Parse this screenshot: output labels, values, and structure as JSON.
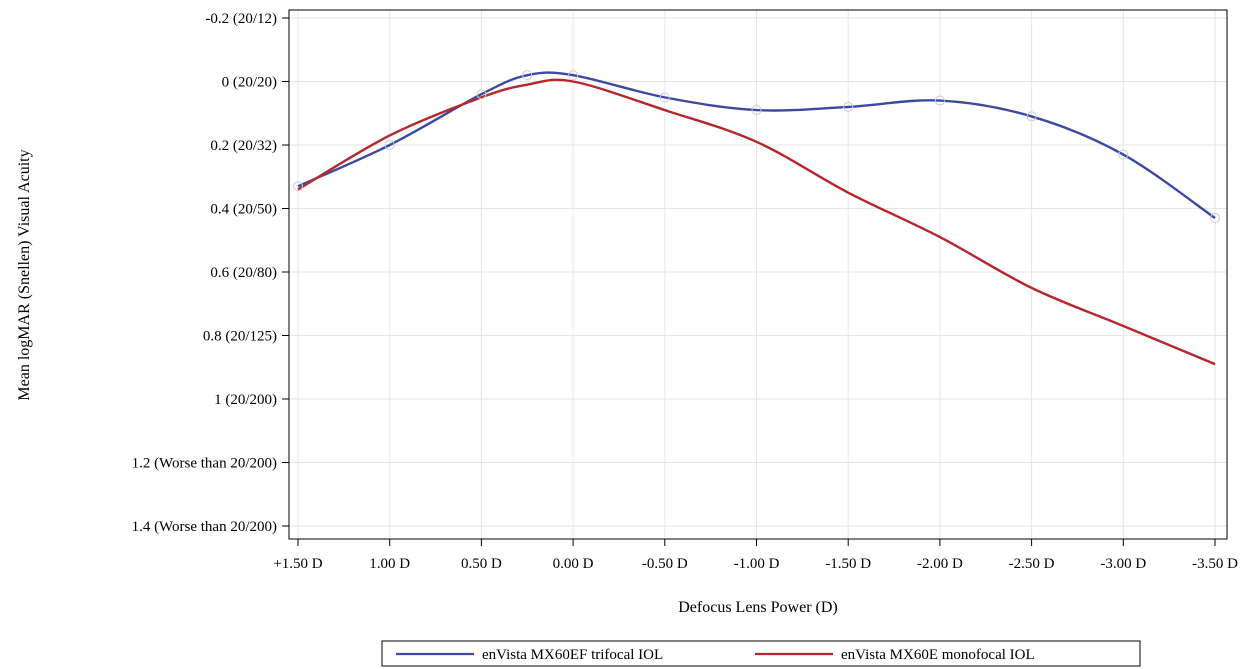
{
  "colors": {
    "trifocal": "#3b49a3",
    "monofocal": "#b5272d",
    "marker": "#c9cbd8",
    "grid": "#e6e6e6"
  },
  "chart_data": {
    "type": "line",
    "title": "",
    "xlabel": "Defocus Lens Power (D)",
    "ylabel": "Mean logMAR (Snellen) Visual Acuity",
    "x": [
      1.5,
      1.0,
      0.5,
      0.25,
      0.0,
      -0.5,
      -1.0,
      -1.5,
      -2.0,
      -2.5,
      -3.0,
      -3.5
    ],
    "x_ticks": [
      1.5,
      1.0,
      0.5,
      0.0,
      -0.5,
      -1.0,
      -1.5,
      -2.0,
      -2.5,
      -3.0,
      -3.5
    ],
    "x_tick_labels": [
      "+1.50 D",
      "1.00 D",
      "0.50 D",
      "0.00 D",
      "-0.50 D",
      "-1.00 D",
      "-1.50 D",
      "-2.00 D",
      "-2.50 D",
      "-3.00 D",
      "-3.50 D"
    ],
    "xlim": [
      1.5,
      -3.5
    ],
    "y_ticks": [
      -0.2,
      0,
      0.2,
      0.4,
      0.6,
      0.8,
      1.0,
      1.2,
      1.4
    ],
    "y_tick_labels": [
      "-0.2 (20/12)",
      "0 (20/20)",
      "0.2 (20/32)",
      "0.4 (20/50)",
      "0.6 (20/80)",
      "0.8 (20/125)",
      "1 (20/200)",
      "1.2 (Worse than 20/200)",
      "1.4 (Worse than 20/200)"
    ],
    "ylim": [
      -0.2,
      1.4
    ],
    "y_inverted": true,
    "grid": true,
    "legend_position": "bottom",
    "series": [
      {
        "name": "enVista MX60EF trifocal IOL",
        "color_key": "trifocal",
        "markers": true,
        "values": [
          0.33,
          0.2,
          0.04,
          -0.02,
          -0.02,
          0.05,
          0.09,
          0.08,
          0.06,
          0.11,
          0.23,
          0.43
        ]
      },
      {
        "name": "enVista MX60E monofocal IOL",
        "color_key": "monofocal",
        "markers": false,
        "values": [
          0.34,
          0.17,
          0.05,
          0.01,
          0.0,
          0.09,
          0.19,
          0.35,
          0.49,
          0.65,
          0.77,
          0.89
        ]
      }
    ]
  }
}
